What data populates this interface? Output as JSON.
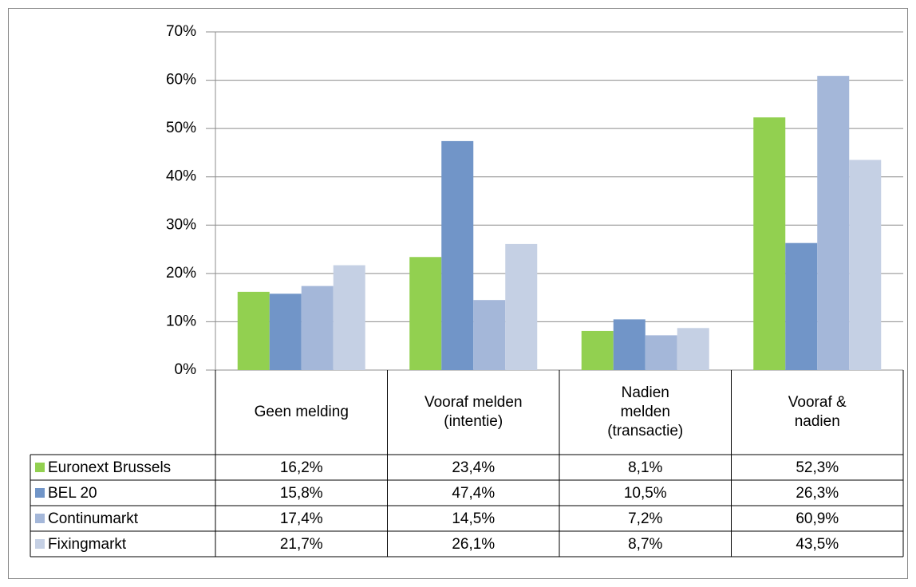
{
  "chart_data": {
    "type": "bar",
    "categories": [
      "Geen melding",
      "Vooraf melden (intentie)",
      "Nadien melden (transactie)",
      "Vooraf & nadien"
    ],
    "series": [
      {
        "name": "Euronext Brussels",
        "color": "#92d050",
        "values": [
          16.2,
          23.4,
          8.1,
          52.3
        ],
        "value_labels": [
          "16,2%",
          "23,4%",
          "8,1%",
          "52,3%"
        ]
      },
      {
        "name": "BEL 20",
        "color": "#7195c8",
        "values": [
          15.8,
          47.4,
          10.5,
          26.3
        ],
        "value_labels": [
          "15,8%",
          "47,4%",
          "10,5%",
          "26,3%"
        ]
      },
      {
        "name": "Continumarkt",
        "color": "#a4b7d9",
        "values": [
          17.4,
          14.5,
          7.2,
          60.9
        ],
        "value_labels": [
          "17,4%",
          "14,5%",
          "7,2%",
          "60,9%"
        ]
      },
      {
        "name": "Fixingmarkt",
        "color": "#c5d0e4",
        "values": [
          21.7,
          26.1,
          8.7,
          43.5
        ],
        "value_labels": [
          "21,7%",
          "26,1%",
          "8,7%",
          "43,5%"
        ]
      }
    ],
    "ylim": [
      0,
      70
    ],
    "yticks": [
      {
        "value": 0,
        "label": "0%"
      },
      {
        "value": 10,
        "label": "10%"
      },
      {
        "value": 20,
        "label": "20%"
      },
      {
        "value": 30,
        "label": "30%"
      },
      {
        "value": 40,
        "label": "40%"
      },
      {
        "value": 50,
        "label": "50%"
      },
      {
        "value": 60,
        "label": "60%"
      },
      {
        "value": 70,
        "label": "70%"
      }
    ],
    "grid": true
  }
}
